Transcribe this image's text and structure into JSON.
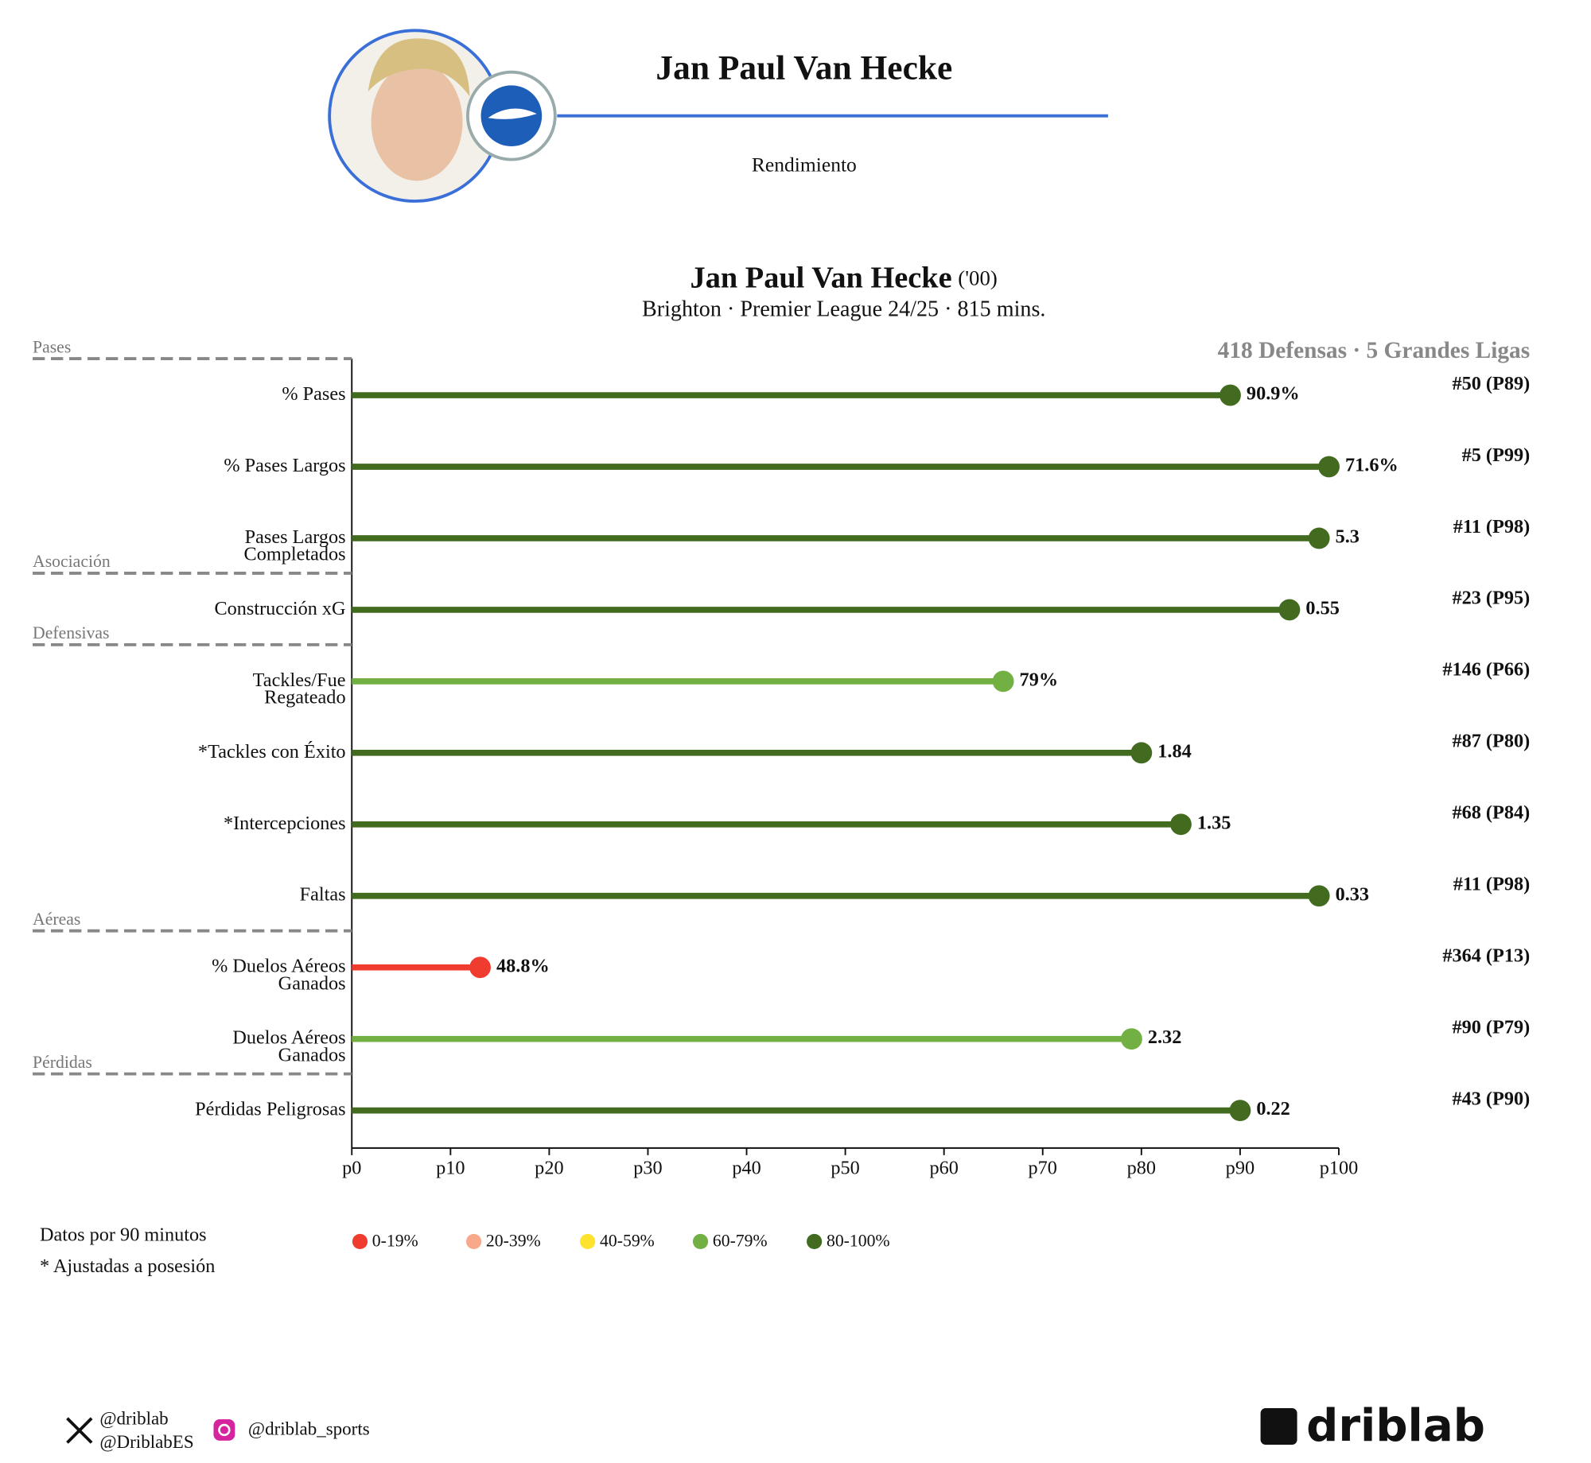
{
  "header": {
    "name": "Jan Paul Van Hecke",
    "subtitle": "Rendimiento"
  },
  "chart_data": {
    "type": "lollipop",
    "title": "Jan Paul Van Hecke",
    "title_note": "('00)",
    "subtitle": "Brighton · Premier League 24/25 · 815 mins.",
    "comparison": "418 Defensas · 5 Grandes Ligas",
    "categories": [
      "% Pases",
      "% Pases Largos",
      "Pases Largos\nCompletados",
      "Construcción xG",
      "Tackles/Fue\nRegateado",
      "*Tackles con Éxito",
      "*Intercepciones",
      "Faltas",
      "% Duelos Aéreos\nGanados",
      "Duelos Aéreos\nGanados",
      "Pérdidas Peligrosas"
    ],
    "values": [
      89,
      99,
      98,
      95,
      66,
      80,
      84,
      98,
      13,
      79,
      90
    ],
    "colors": [
      "#426b1f",
      "#426b1f",
      "#426b1f",
      "#426b1f",
      "#72b043",
      "#426b1f",
      "#426b1f",
      "#426b1f",
      "#f03c2e",
      "#72b043",
      "#426b1f"
    ],
    "metric_labels": [
      "90.9%",
      "71.6%",
      "5.3",
      "0.55",
      "79%",
      "1.84",
      "1.35",
      "0.33",
      "48.8%",
      "2.32",
      "0.22"
    ],
    "rank_labels": [
      "#50 (P89)",
      "#5 (P99)",
      "#11 (P98)",
      "#23 (P95)",
      "#146 (P66)",
      "#87 (P80)",
      "#68 (P84)",
      "#11 (P98)",
      "#364 (P13)",
      "#90 (P79)",
      "#43 (P90)"
    ],
    "groups": [
      {
        "name": "Pases",
        "start": 0
      },
      {
        "name": "Asociación",
        "start": 3
      },
      {
        "name": "Defensivas",
        "start": 4
      },
      {
        "name": "Aéreas",
        "start": 8
      },
      {
        "name": "Pérdidas",
        "start": 10
      }
    ],
    "xlim": [
      0,
      100
    ],
    "xticks": [
      {
        "value": 0,
        "label": "p0"
      },
      {
        "value": 10,
        "label": "p10"
      },
      {
        "value": 20,
        "label": "p20"
      },
      {
        "value": 30,
        "label": "p30"
      },
      {
        "value": 40,
        "label": "p40"
      },
      {
        "value": 50,
        "label": "p50"
      },
      {
        "value": 60,
        "label": "p60"
      },
      {
        "value": 70,
        "label": "p70"
      },
      {
        "value": 80,
        "label": "p80"
      },
      {
        "value": 90,
        "label": "p90"
      },
      {
        "value": 100,
        "label": "p100"
      }
    ],
    "legend": [
      {
        "name": "0-19%",
        "color": "#f03c2e"
      },
      {
        "name": "20-39%",
        "color": "#f9a98b"
      },
      {
        "name": "40-59%",
        "color": "#fde22e"
      },
      {
        "name": "60-79%",
        "color": "#72b043"
      },
      {
        "name": "80-100%",
        "color": "#426b1f"
      }
    ],
    "notes": [
      "Datos por 90 minutos",
      "* Ajustadas a posesión"
    ]
  },
  "footer": {
    "twitter": [
      "@driblab",
      "@DriblabES"
    ],
    "instagram": "@driblab_sports",
    "brand": "driblab"
  }
}
